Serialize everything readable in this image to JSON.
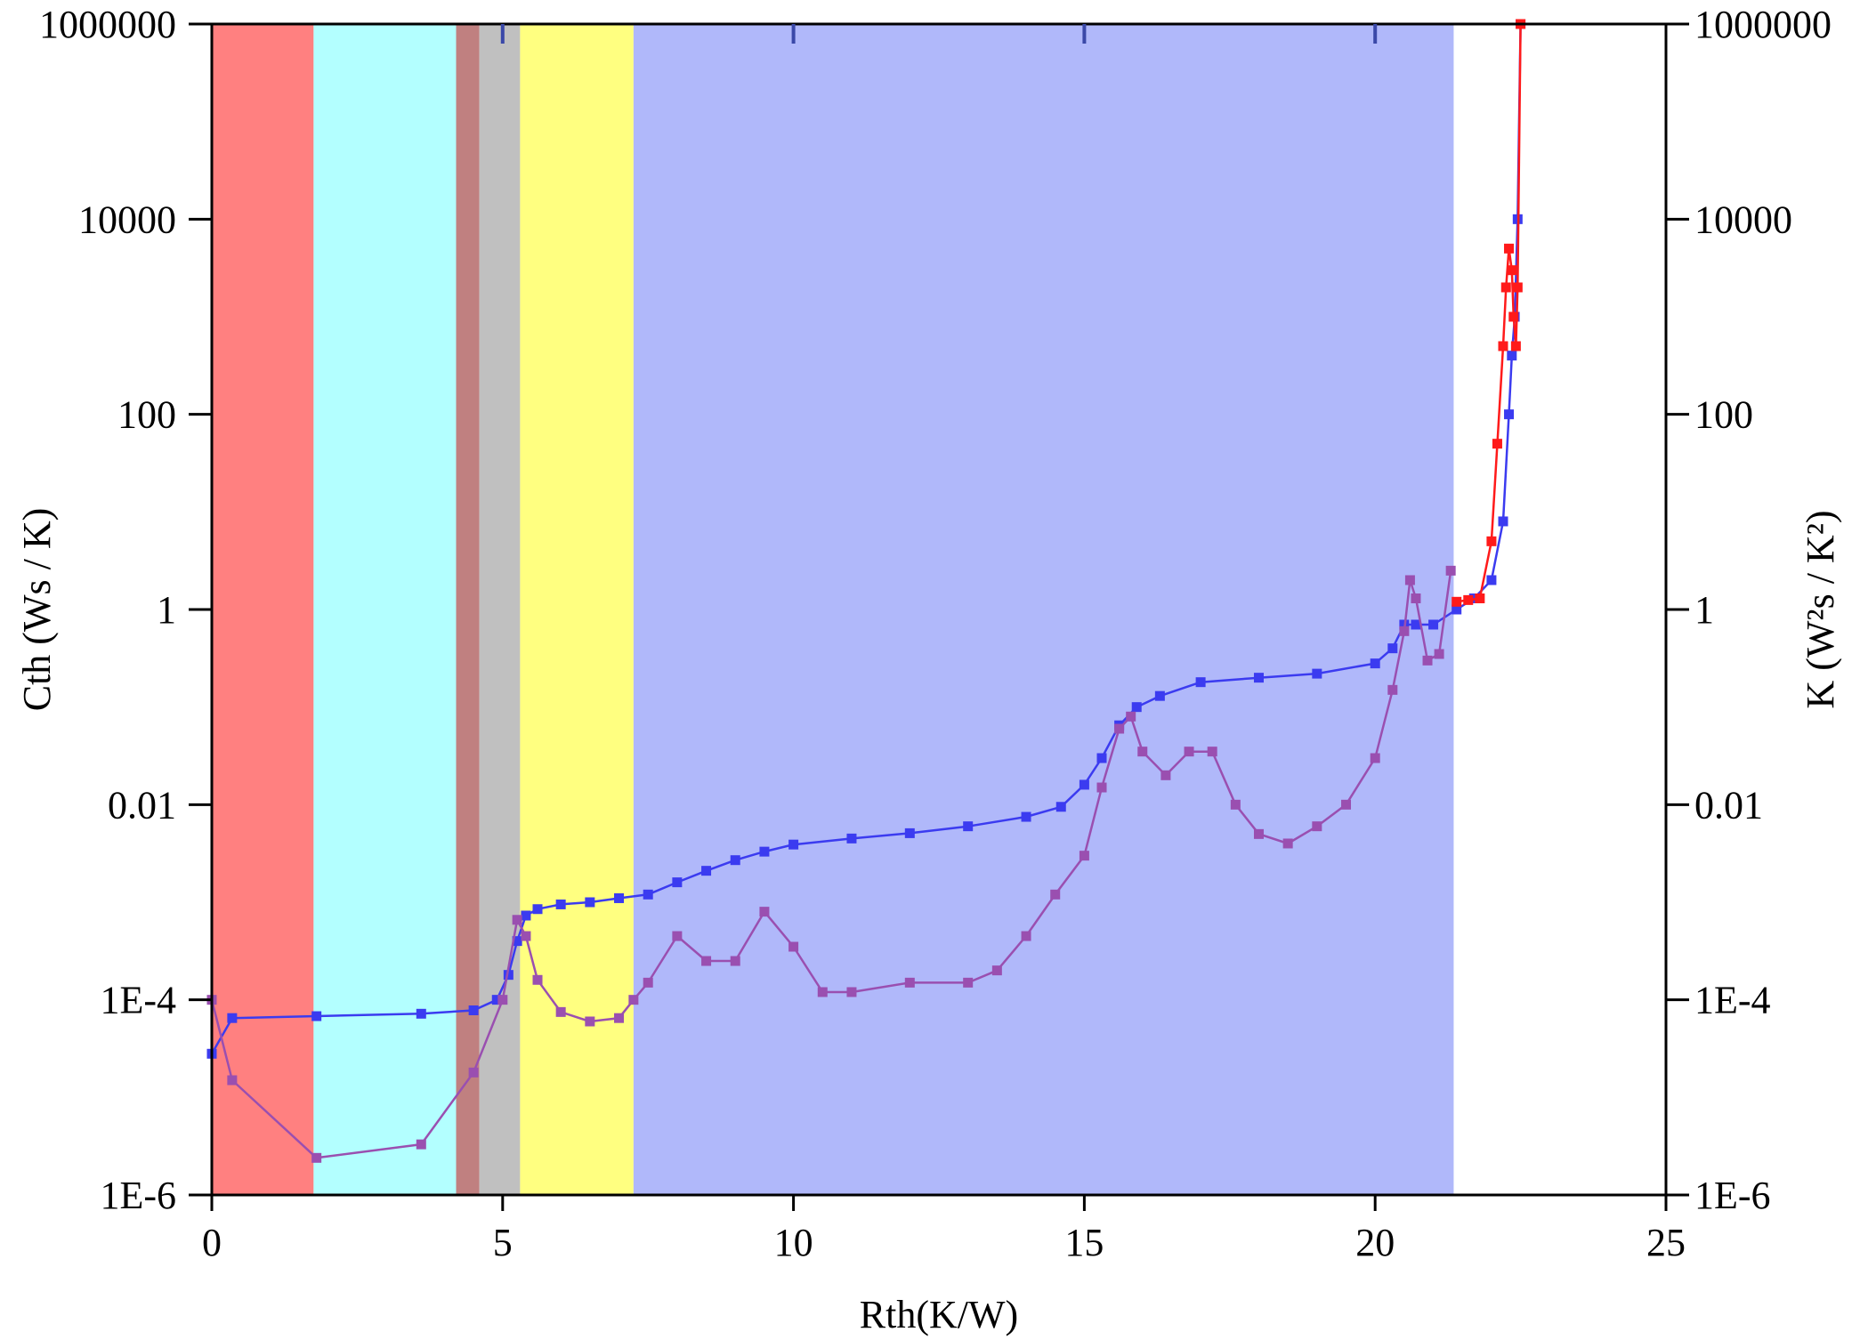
{
  "chart_data": {
    "type": "line",
    "title": "",
    "xlabel": "Rth(K/W)",
    "ylabel": "Cth (Ws / K)",
    "y2label": "K  (W²s / K²)",
    "xlim": [
      0,
      25
    ],
    "ylim": [
      1e-06,
      1000000
    ],
    "y2lim": [
      1e-06,
      1000000
    ],
    "yscale": "log",
    "grid": false,
    "legend": "none",
    "x_ticks": [
      {
        "value": 0,
        "label": "0"
      },
      {
        "value": 5,
        "label": "5"
      },
      {
        "value": 10,
        "label": "10"
      },
      {
        "value": 15,
        "label": "15"
      },
      {
        "value": 20,
        "label": "20"
      },
      {
        "value": 25,
        "label": "25"
      }
    ],
    "y_ticks": [
      {
        "value": 1e-06,
        "label": "1E-6"
      },
      {
        "value": 0.0001,
        "label": "1E-4"
      },
      {
        "value": 0.01,
        "label": "0.01"
      },
      {
        "value": 1,
        "label": "1"
      },
      {
        "value": 100,
        "label": "100"
      },
      {
        "value": 10000,
        "label": "10000"
      },
      {
        "value": 1000000,
        "label": "1000000"
      }
    ],
    "regions": [
      {
        "x0": 0,
        "x1": 1.75,
        "color": "#ff8080"
      },
      {
        "x0": 1.75,
        "x1": 4.2,
        "color": "#b3ffff"
      },
      {
        "x0": 4.2,
        "x1": 4.6,
        "color": "#c08080"
      },
      {
        "x0": 4.6,
        "x1": 5.3,
        "color": "#c0c0c0"
      },
      {
        "x0": 5.3,
        "x1": 7.25,
        "color": "#ffff80"
      },
      {
        "x0": 7.25,
        "x1": 21.35,
        "color": "#b0b8fa"
      }
    ],
    "top_ticks_x": [
      5,
      10,
      15,
      20
    ],
    "series": [
      {
        "color": "#3b3bf0",
        "x": [
          0.0,
          0.35,
          1.8,
          3.6,
          4.5,
          4.9,
          5.1,
          5.25,
          5.4,
          5.6,
          6.0,
          6.5,
          7.0,
          7.5,
          8.0,
          8.5,
          9.0,
          9.5,
          10.0,
          11.0,
          12.0,
          13.0,
          14.0,
          14.6,
          15.0,
          15.3,
          15.6,
          15.9,
          16.3,
          17.0,
          18.0,
          19.0,
          20.0,
          20.3,
          20.5,
          20.7,
          21.0,
          21.4,
          21.7,
          22.0,
          22.2,
          22.3,
          22.35,
          22.4,
          22.45,
          22.5
        ],
        "y": [
          2.8e-05,
          6.5e-05,
          6.8e-05,
          7.2e-05,
          7.8e-05,
          0.0001,
          0.00018,
          0.0004,
          0.00073,
          0.00085,
          0.00095,
          0.001,
          0.0011,
          0.0012,
          0.0016,
          0.0021,
          0.0027,
          0.0033,
          0.0039,
          0.0045,
          0.0051,
          0.006,
          0.0075,
          0.0095,
          0.016,
          0.03,
          0.065,
          0.1,
          0.13,
          0.18,
          0.2,
          0.22,
          0.28,
          0.4,
          0.7,
          0.7,
          0.7,
          1.0,
          1.3,
          2.0,
          8.0,
          100,
          400,
          1000,
          10000,
          1000000
        ]
      },
      {
        "color": "#9a4fb0",
        "x": [
          0.0,
          0.35,
          1.8,
          3.6,
          4.5,
          5.0,
          5.25,
          5.4,
          5.6,
          6.0,
          6.5,
          7.0,
          7.25,
          7.5,
          8.0,
          8.5,
          9.0,
          9.5,
          10.0,
          10.5,
          11.0,
          12.0,
          13.0,
          13.5,
          14.0,
          14.5,
          15.0,
          15.3,
          15.6,
          15.8,
          16.0,
          16.4,
          16.8,
          17.2,
          17.6,
          18.0,
          18.5,
          19.0,
          19.5,
          20.0,
          20.3,
          20.5,
          20.6,
          20.7,
          20.9,
          21.1,
          21.3
        ],
        "y": [
          0.0001,
          1.5e-05,
          2.4e-06,
          3.3e-06,
          1.8e-05,
          0.0001,
          0.00066,
          0.00045,
          0.00016,
          7.5e-05,
          6e-05,
          6.5e-05,
          0.0001,
          0.00015,
          0.00045,
          0.00025,
          0.00025,
          0.0008,
          0.00035,
          0.00012,
          0.00012,
          0.00015,
          0.00015,
          0.0002,
          0.00045,
          0.0012,
          0.003,
          0.015,
          0.06,
          0.08,
          0.035,
          0.02,
          0.035,
          0.035,
          0.01,
          0.005,
          0.004,
          0.006,
          0.01,
          0.03,
          0.15,
          0.6,
          2.0,
          1.3,
          0.3,
          0.35,
          2.5
        ]
      },
      {
        "color": "#ff1a1a",
        "x": [
          21.4,
          21.6,
          21.8,
          22.0,
          22.1,
          22.2,
          22.25,
          22.3,
          22.35,
          22.38,
          22.42,
          22.45,
          22.5
        ],
        "y": [
          1.2,
          1.25,
          1.3,
          5.0,
          50,
          500,
          2000,
          5000,
          3000,
          1000,
          500,
          2000,
          1000000
        ]
      }
    ]
  }
}
